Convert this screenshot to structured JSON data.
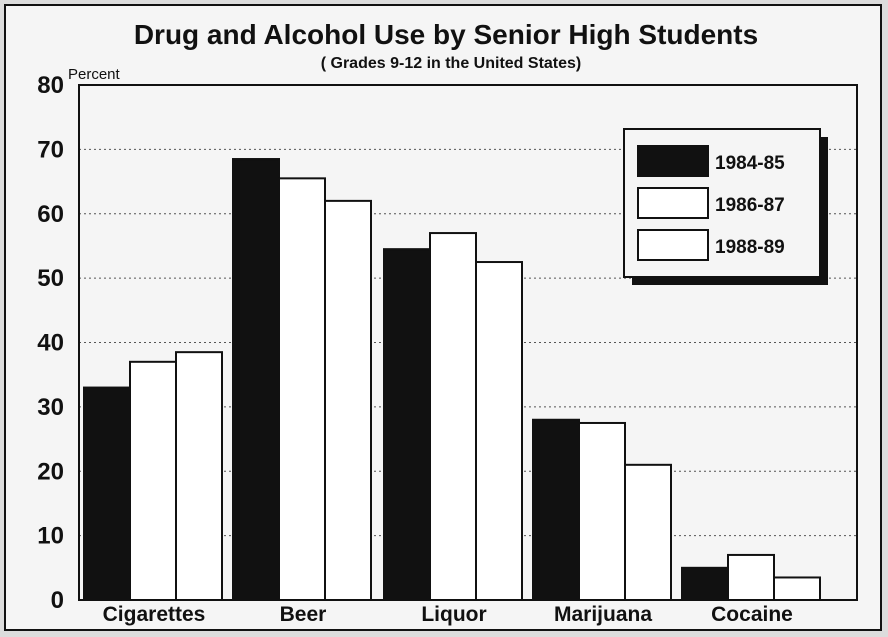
{
  "chart_data": {
    "type": "bar",
    "title": "Drug and Alcohol Use by Senior High Students",
    "subtitle": "( Grades 9-12 in the United States)",
    "ylabel": "Percent",
    "ylim": [
      0,
      80
    ],
    "yticks": [
      0,
      10,
      20,
      30,
      40,
      50,
      60,
      70,
      80
    ],
    "grid": true,
    "legend_position": "top-right",
    "categories": [
      "Cigarettes",
      "Beer",
      "Liquor",
      "Marijuana",
      "Cocaine"
    ],
    "series": [
      {
        "name": "1984-85",
        "color": "#111111",
        "values": [
          33,
          68.5,
          54.5,
          28,
          5
        ]
      },
      {
        "name": "1986-87",
        "color": "#ffffff",
        "values": [
          37,
          65.5,
          57,
          27.5,
          7
        ]
      },
      {
        "name": "1988-89",
        "color": "#ffffff",
        "values": [
          38.5,
          62,
          52.5,
          21,
          3.5
        ]
      }
    ]
  }
}
